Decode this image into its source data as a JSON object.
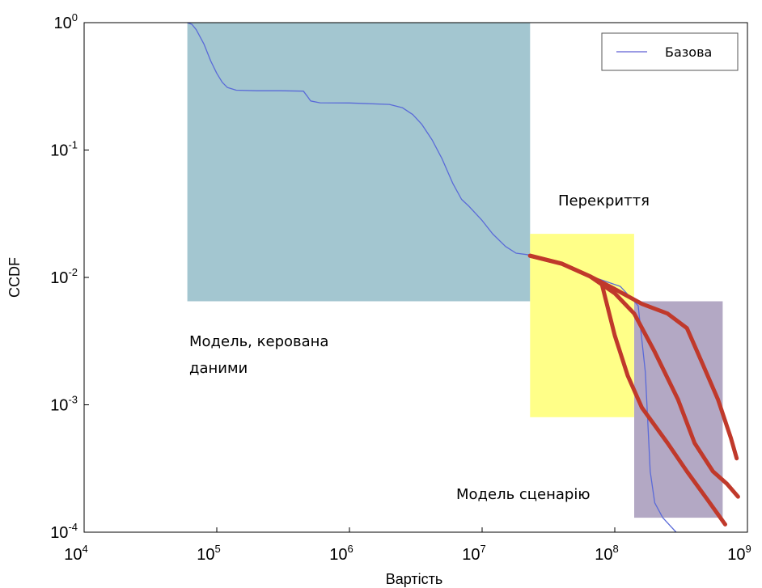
{
  "chart_data": {
    "type": "line",
    "xlabel": "Вартість",
    "ylabel": "CCDF",
    "xscale": "log",
    "yscale": "log",
    "xlim": [
      10000,
      1000000000
    ],
    "ylim": [
      0.0001,
      1
    ],
    "grid": false,
    "legend": {
      "placement": "top-right",
      "entries": [
        {
          "label": "Базова",
          "color": "#7a7adc"
        }
      ]
    },
    "x_ticks": [
      {
        "base": "10",
        "exp": "4",
        "value": 10000
      },
      {
        "base": "10",
        "exp": "5",
        "value": 100000
      },
      {
        "base": "10",
        "exp": "6",
        "value": 1000000
      },
      {
        "base": "10",
        "exp": "7",
        "value": 10000000
      },
      {
        "base": "10",
        "exp": "8",
        "value": 100000000
      },
      {
        "base": "10",
        "exp": "9",
        "value": 1000000000
      }
    ],
    "y_ticks": [
      {
        "base": "10",
        "exp": "0",
        "value": 1
      },
      {
        "base": "10",
        "exp": "-1",
        "value": 0.1
      },
      {
        "base": "10",
        "exp": "-2",
        "value": 0.01
      },
      {
        "base": "10",
        "exp": "-3",
        "value": 0.001
      },
      {
        "base": "10",
        "exp": "-4",
        "value": 0.0001
      }
    ],
    "regions": [
      {
        "label": "Модель, керована даними",
        "label_lines": [
          "Модель, керована",
          "даними"
        ],
        "color": "#a3c6d0",
        "x_range": [
          60000,
          23000000
        ],
        "y_range": [
          0.0065,
          1
        ]
      },
      {
        "label": "Перекриття",
        "label_lines": [
          "Перекриття"
        ],
        "color": "#ffff88",
        "x_range": [
          23000000,
          140000000
        ],
        "y_range": [
          0.0008,
          0.022
        ]
      },
      {
        "label": "Модель сценарію",
        "label_lines": [
          "Модель сценарію"
        ],
        "color": "#b3a8c4",
        "x_range": [
          140000000,
          650000000
        ],
        "y_range": [
          0.00013,
          0.0065
        ]
      }
    ],
    "series": [
      {
        "name": "Базова",
        "color": "#5a6ad8",
        "points": [
          [
            60000,
            1.0
          ],
          [
            65000,
            0.97
          ],
          [
            70000,
            0.88
          ],
          [
            80000,
            0.68
          ],
          [
            90000,
            0.5
          ],
          [
            100000,
            0.4
          ],
          [
            110000,
            0.34
          ],
          [
            120000,
            0.31
          ],
          [
            140000,
            0.295
          ],
          [
            200000,
            0.292
          ],
          [
            300000,
            0.292
          ],
          [
            450000,
            0.29
          ],
          [
            480000,
            0.265
          ],
          [
            510000,
            0.243
          ],
          [
            600000,
            0.235
          ],
          [
            1000000,
            0.234
          ],
          [
            2000000,
            0.228
          ],
          [
            2500000,
            0.215
          ],
          [
            3000000,
            0.19
          ],
          [
            3500000,
            0.16
          ],
          [
            4200000,
            0.12
          ],
          [
            5000000,
            0.085
          ],
          [
            6000000,
            0.055
          ],
          [
            7000000,
            0.041
          ],
          [
            8000000,
            0.036
          ],
          [
            10000000,
            0.028
          ],
          [
            12000000,
            0.022
          ],
          [
            15000000,
            0.0175
          ],
          [
            18000000,
            0.0155
          ],
          [
            23000000,
            0.015
          ],
          [
            40000000,
            0.0125
          ],
          [
            70000000,
            0.01
          ],
          [
            110000000,
            0.0085
          ],
          [
            150000000,
            0.006
          ],
          [
            170000000,
            0.0018
          ],
          [
            185000000,
            0.0003
          ],
          [
            200000000,
            0.00017
          ],
          [
            230000000,
            0.00013
          ],
          [
            290000000,
            0.0001
          ]
        ]
      },
      {
        "name": "",
        "color": "#c0392b",
        "points": [
          [
            23000000,
            0.0148
          ],
          [
            40000000,
            0.0128
          ],
          [
            65000000,
            0.0102
          ],
          [
            100000000,
            0.0081
          ],
          [
            160000000,
            0.0062
          ],
          [
            250000000,
            0.0052
          ],
          [
            350000000,
            0.004
          ],
          [
            450000000,
            0.0022
          ],
          [
            600000000,
            0.0011
          ],
          [
            750000000,
            0.00055
          ],
          [
            830000000,
            0.00038
          ]
        ]
      },
      {
        "name": "",
        "color": "#c0392b",
        "points": [
          [
            23000000,
            0.0148
          ],
          [
            40000000,
            0.0128
          ],
          [
            65000000,
            0.0102
          ],
          [
            100000000,
            0.0075
          ],
          [
            140000000,
            0.0052
          ],
          [
            200000000,
            0.0026
          ],
          [
            300000000,
            0.0011
          ],
          [
            400000000,
            0.0005
          ],
          [
            550000000,
            0.0003
          ],
          [
            700000000,
            0.00024
          ],
          [
            850000000,
            0.00019
          ]
        ]
      },
      {
        "name": "",
        "color": "#c0392b",
        "points": [
          [
            23000000,
            0.0148
          ],
          [
            40000000,
            0.0128
          ],
          [
            65000000,
            0.0102
          ],
          [
            80000000,
            0.0088
          ],
          [
            100000000,
            0.0035
          ],
          [
            125000000,
            0.0017
          ],
          [
            160000000,
            0.00095
          ],
          [
            250000000,
            0.0005
          ],
          [
            350000000,
            0.0003
          ],
          [
            500000000,
            0.00018
          ],
          [
            680000000,
            0.000115
          ]
        ]
      }
    ]
  }
}
